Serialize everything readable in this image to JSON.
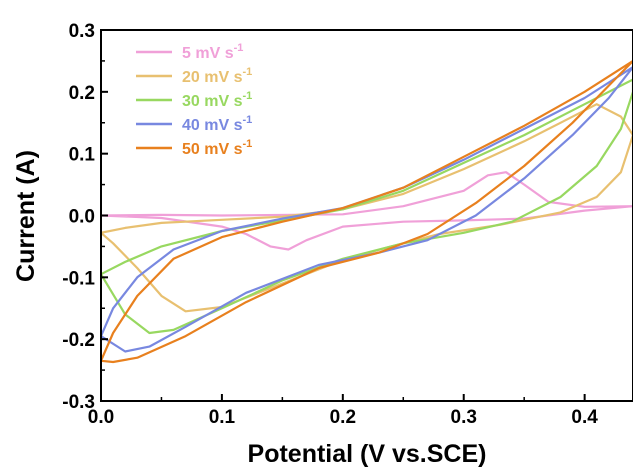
{
  "chart_data": {
    "type": "line",
    "title": "",
    "xlabel": "Potential (V vs.SCE)",
    "ylabel": "Current (A)",
    "xlim": [
      0.0,
      0.44
    ],
    "ylim": [
      -0.3,
      0.3
    ],
    "x_ticks": [
      {
        "value": 0.0,
        "label": "0.0"
      },
      {
        "value": 0.1,
        "label": "0.1"
      },
      {
        "value": 0.2,
        "label": "0.2"
      },
      {
        "value": 0.3,
        "label": "0.3"
      },
      {
        "value": 0.4,
        "label": "0.4"
      }
    ],
    "y_ticks": [
      {
        "value": 0.3,
        "label": "0.3"
      },
      {
        "value": 0.2,
        "label": "0.2"
      },
      {
        "value": 0.1,
        "label": "0.1"
      },
      {
        "value": 0.0,
        "label": "0.0"
      },
      {
        "value": -0.1,
        "label": "-0.1"
      },
      {
        "value": -0.2,
        "label": "-0.2"
      },
      {
        "value": -0.3,
        "label": "-0.3"
      }
    ],
    "grid": false,
    "legend_position": "top-left",
    "series": [
      {
        "name": "5 mV s",
        "name_sup": "-1",
        "color": "#f0a0d8",
        "points": [
          [
            0.0,
            0.0
          ],
          [
            0.05,
            0.001
          ],
          [
            0.1,
            0.0
          ],
          [
            0.2,
            0.002
          ],
          [
            0.25,
            0.015
          ],
          [
            0.3,
            0.04
          ],
          [
            0.32,
            0.065
          ],
          [
            0.335,
            0.07
          ],
          [
            0.35,
            0.05
          ],
          [
            0.37,
            0.022
          ],
          [
            0.4,
            0.014
          ],
          [
            0.44,
            0.015
          ],
          [
            0.4,
            0.008
          ],
          [
            0.35,
            -0.005
          ],
          [
            0.3,
            -0.008
          ],
          [
            0.25,
            -0.01
          ],
          [
            0.2,
            -0.018
          ],
          [
            0.17,
            -0.04
          ],
          [
            0.155,
            -0.055
          ],
          [
            0.14,
            -0.05
          ],
          [
            0.12,
            -0.03
          ],
          [
            0.1,
            -0.018
          ],
          [
            0.05,
            -0.004
          ],
          [
            0.0,
            0.0
          ]
        ]
      },
      {
        "name": "20 mV s",
        "name_sup": "-1",
        "color": "#e8c070",
        "points": [
          [
            0.0,
            -0.028
          ],
          [
            0.02,
            -0.02
          ],
          [
            0.05,
            -0.012
          ],
          [
            0.1,
            -0.007
          ],
          [
            0.15,
            -0.002
          ],
          [
            0.2,
            0.01
          ],
          [
            0.25,
            0.035
          ],
          [
            0.3,
            0.075
          ],
          [
            0.35,
            0.12
          ],
          [
            0.38,
            0.15
          ],
          [
            0.41,
            0.18
          ],
          [
            0.43,
            0.16
          ],
          [
            0.44,
            0.13
          ],
          [
            0.43,
            0.07
          ],
          [
            0.41,
            0.03
          ],
          [
            0.38,
            0.005
          ],
          [
            0.33,
            -0.015
          ],
          [
            0.28,
            -0.03
          ],
          [
            0.24,
            -0.05
          ],
          [
            0.2,
            -0.072
          ],
          [
            0.15,
            -0.11
          ],
          [
            0.1,
            -0.148
          ],
          [
            0.07,
            -0.155
          ],
          [
            0.05,
            -0.13
          ],
          [
            0.03,
            -0.085
          ],
          [
            0.01,
            -0.045
          ],
          [
            0.0,
            -0.028
          ]
        ]
      },
      {
        "name": "30 mV s",
        "name_sup": "-1",
        "color": "#98d860",
        "points": [
          [
            0.0,
            -0.095
          ],
          [
            0.02,
            -0.075
          ],
          [
            0.05,
            -0.05
          ],
          [
            0.1,
            -0.025
          ],
          [
            0.15,
            -0.008
          ],
          [
            0.2,
            0.01
          ],
          [
            0.25,
            0.04
          ],
          [
            0.3,
            0.085
          ],
          [
            0.35,
            0.13
          ],
          [
            0.4,
            0.18
          ],
          [
            0.44,
            0.22
          ],
          [
            0.44,
            0.2
          ],
          [
            0.43,
            0.14
          ],
          [
            0.41,
            0.08
          ],
          [
            0.38,
            0.03
          ],
          [
            0.34,
            -0.01
          ],
          [
            0.3,
            -0.028
          ],
          [
            0.25,
            -0.045
          ],
          [
            0.2,
            -0.07
          ],
          [
            0.15,
            -0.105
          ],
          [
            0.1,
            -0.15
          ],
          [
            0.06,
            -0.185
          ],
          [
            0.04,
            -0.19
          ],
          [
            0.02,
            -0.16
          ],
          [
            0.0,
            -0.095
          ]
        ]
      },
      {
        "name": "40 mV s",
        "name_sup": "-1",
        "color": "#7888e0",
        "points": [
          [
            0.0,
            -0.195
          ],
          [
            0.01,
            -0.15
          ],
          [
            0.03,
            -0.1
          ],
          [
            0.06,
            -0.055
          ],
          [
            0.1,
            -0.025
          ],
          [
            0.15,
            -0.005
          ],
          [
            0.2,
            0.012
          ],
          [
            0.25,
            0.045
          ],
          [
            0.3,
            0.09
          ],
          [
            0.35,
            0.14
          ],
          [
            0.4,
            0.19
          ],
          [
            0.44,
            0.24
          ],
          [
            0.42,
            0.19
          ],
          [
            0.39,
            0.13
          ],
          [
            0.35,
            0.06
          ],
          [
            0.31,
            0.0
          ],
          [
            0.27,
            -0.04
          ],
          [
            0.23,
            -0.06
          ],
          [
            0.18,
            -0.08
          ],
          [
            0.12,
            -0.125
          ],
          [
            0.07,
            -0.18
          ],
          [
            0.04,
            -0.212
          ],
          [
            0.02,
            -0.22
          ],
          [
            0.0,
            -0.195
          ]
        ]
      },
      {
        "name": "50 mV s",
        "name_sup": "-1",
        "color": "#e8801e",
        "points": [
          [
            0.0,
            -0.235
          ],
          [
            0.01,
            -0.19
          ],
          [
            0.03,
            -0.13
          ],
          [
            0.06,
            -0.07
          ],
          [
            0.1,
            -0.035
          ],
          [
            0.15,
            -0.01
          ],
          [
            0.2,
            0.012
          ],
          [
            0.25,
            0.045
          ],
          [
            0.3,
            0.095
          ],
          [
            0.35,
            0.145
          ],
          [
            0.4,
            0.2
          ],
          [
            0.44,
            0.25
          ],
          [
            0.42,
            0.21
          ],
          [
            0.39,
            0.15
          ],
          [
            0.35,
            0.08
          ],
          [
            0.31,
            0.02
          ],
          [
            0.27,
            -0.03
          ],
          [
            0.23,
            -0.06
          ],
          [
            0.18,
            -0.085
          ],
          [
            0.12,
            -0.14
          ],
          [
            0.07,
            -0.195
          ],
          [
            0.03,
            -0.23
          ],
          [
            0.01,
            -0.237
          ],
          [
            0.0,
            -0.235
          ]
        ]
      }
    ]
  }
}
